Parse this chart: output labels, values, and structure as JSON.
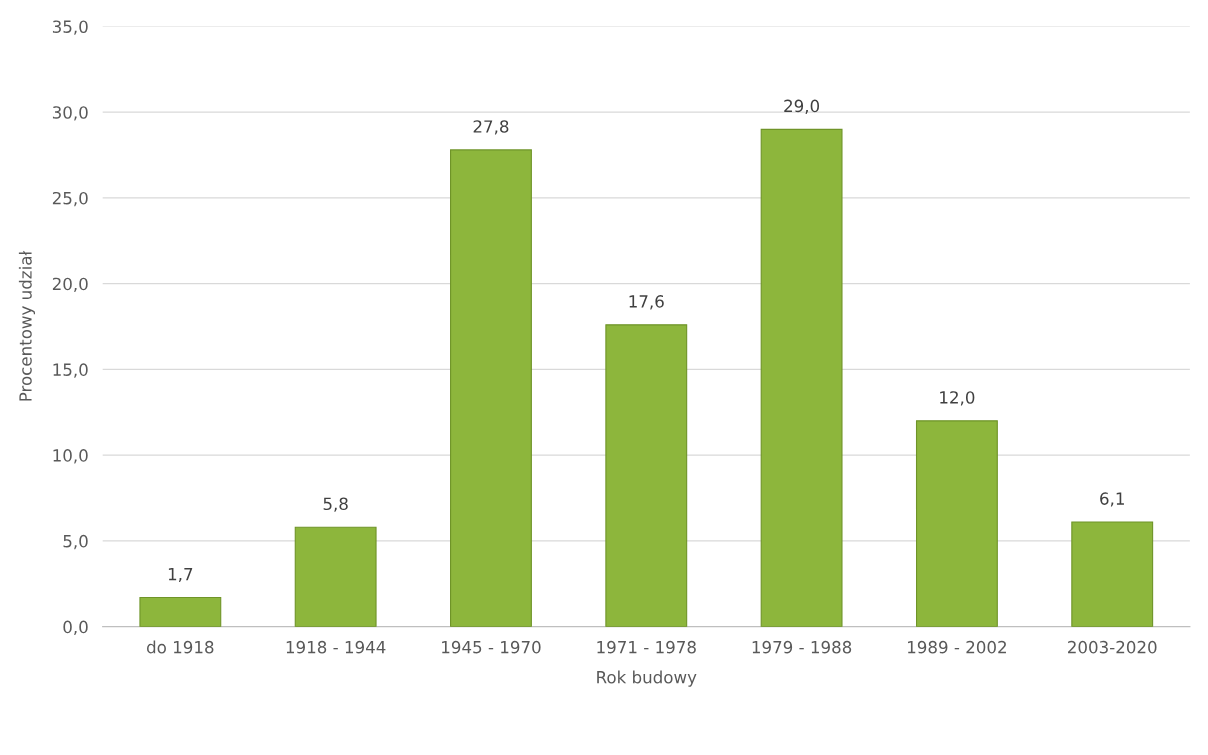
{
  "chart_data": {
    "type": "bar",
    "xlabel": "Rok budowy",
    "ylabel": "Procentowy udział",
    "categories": [
      "do 1918",
      "1918 - 1944",
      "1945 - 1970",
      "1971 - 1978",
      "1979 - 1988",
      "1989 - 2002",
      "2003-2020"
    ],
    "values": [
      1.7,
      5.8,
      27.8,
      17.6,
      29.0,
      12.0,
      6.1
    ],
    "value_labels": [
      "1,7",
      "5,8",
      "27,8",
      "17,6",
      "29,0",
      "12,0",
      "6,1"
    ],
    "color": "#8db63c",
    "ylim": [
      0,
      35
    ],
    "yticks": [
      {
        "value": 0,
        "label": "0,0"
      },
      {
        "value": 5,
        "label": "5,0"
      },
      {
        "value": 10,
        "label": "10,0"
      },
      {
        "value": 15,
        "label": "15,0"
      },
      {
        "value": 20,
        "label": "20,0"
      },
      {
        "value": 25,
        "label": "25,0"
      },
      {
        "value": 30,
        "label": "30,0"
      },
      {
        "value": 35,
        "label": "35,0"
      }
    ],
    "grid": "y",
    "legend": false
  }
}
